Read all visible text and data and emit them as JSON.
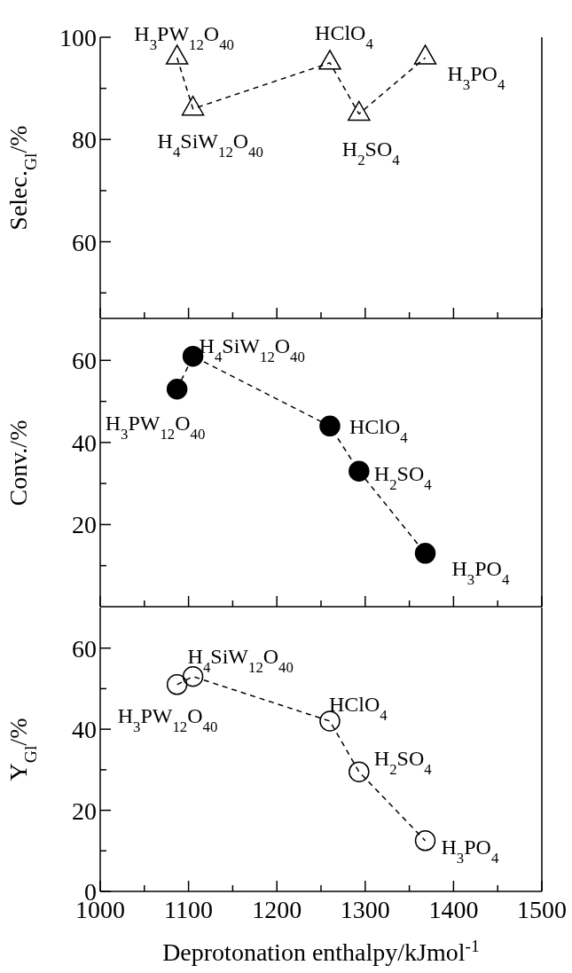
{
  "chart_data": [
    {
      "type": "line",
      "ylabel": "Selec.$_{Gl}$/%",
      "marker": "triangle",
      "line_style": "dashed",
      "color": "#000000",
      "tick_labels": "y",
      "x": [
        1087,
        1105,
        1260,
        1293,
        1368
      ],
      "values": [
        96,
        86,
        95,
        85,
        96
      ],
      "xlim": [
        1000,
        1500
      ],
      "xticks": [
        1000,
        {
          "value": 1050,
          "label": null
        },
        1100,
        {
          "value": 1150,
          "label": null
        },
        1200,
        {
          "value": 1250,
          "label": null
        },
        1300,
        {
          "value": 1350,
          "label": null
        },
        1400,
        {
          "value": 1450,
          "label": null
        },
        1500
      ],
      "ylim": [
        45,
        100
      ],
      "yticks": [
        {
          "value": 50,
          "label": null
        },
        60,
        {
          "value": 70,
          "label": null
        },
        80,
        {
          "value": 90,
          "label": null
        },
        100
      ],
      "annotations": [
        {
          "text": "H$_{3}$PW$_{12}$O$_{40}$",
          "x": 1087,
          "y": 96
        },
        {
          "text": "H$_{4}$SiW$_{12}$O$_{40}$",
          "x": 1105,
          "y": 86
        },
        {
          "text": "HClO$_{4}$",
          "x": 1260,
          "y": 95
        },
        {
          "text": "H$_{2}$SO$_{4}$",
          "x": 1293,
          "y": 85
        },
        {
          "text": "H$_{3}$PO$_{4}$",
          "x": 1368,
          "y": 96
        }
      ]
    },
    {
      "type": "line",
      "ylabel": "Conv./%",
      "marker": "circle",
      "line_style": "dashed",
      "color": "#000000",
      "tick_labels": "y",
      "x": [
        1087,
        1105,
        1260,
        1293,
        1368
      ],
      "values": [
        53,
        61,
        44,
        33,
        13
      ],
      "xlim": [
        1000,
        1500
      ],
      "xticks": [
        1000,
        {
          "value": 1050,
          "label": null
        },
        1100,
        {
          "value": 1150,
          "label": null
        },
        1200,
        {
          "value": 1250,
          "label": null
        },
        1300,
        {
          "value": 1350,
          "label": null
        },
        1400,
        {
          "value": 1450,
          "label": null
        },
        1500
      ],
      "ylim": [
        0,
        70
      ],
      "yticks": [
        {
          "value": 10,
          "label": null
        },
        20,
        {
          "value": 30,
          "label": null
        },
        40,
        {
          "value": 50,
          "label": null
        },
        60
      ],
      "annotations": [
        {
          "text": "H$_{3}$PW$_{12}$O$_{40}$",
          "x": 1087,
          "y": 53
        },
        {
          "text": "H$_{4}$SiW$_{12}$O$_{40}$",
          "x": 1105,
          "y": 61
        },
        {
          "text": "HClO$_{4}$",
          "x": 1260,
          "y": 44
        },
        {
          "text": "H$_{2}$SO$_{4}$",
          "x": 1293,
          "y": 33
        },
        {
          "text": "H$_{3}$PO$_{4}$",
          "x": 1368,
          "y": 13
        }
      ]
    },
    {
      "type": "line",
      "ylabel": "Y$_{Gl}$/%",
      "xlabel": "Deprotonation enthalpy/kJmol$^{-1}$",
      "marker": "circle",
      "line_style": "dashed",
      "color": "#000000",
      "x": [
        1087,
        1105,
        1260,
        1293,
        1368
      ],
      "values": [
        51,
        53,
        42,
        29.5,
        12.5
      ],
      "xlim": [
        1000,
        1500
      ],
      "xticks": [
        1000,
        {
          "value": 1050,
          "label": null
        },
        1100,
        {
          "value": 1150,
          "label": null
        },
        1200,
        {
          "value": 1250,
          "label": null
        },
        1300,
        {
          "value": 1350,
          "label": null
        },
        1400,
        {
          "value": 1450,
          "label": null
        },
        1500
      ],
      "ylim": [
        0,
        70
      ],
      "yticks": [
        0,
        {
          "value": 10,
          "label": null
        },
        20,
        {
          "value": 30,
          "label": null
        },
        40,
        {
          "value": 50,
          "label": null
        },
        60
      ],
      "annotations": [
        {
          "text": "H$_{3}$PW$_{12}$O$_{40}$",
          "x": 1087,
          "y": 51
        },
        {
          "text": "H$_{4}$SiW$_{12}$O$_{40}$",
          "x": 1105,
          "y": 53
        },
        {
          "text": "HClO$_{4}$",
          "x": 1260,
          "y": 42
        },
        {
          "text": "H$_{2}$SO$_{4}$",
          "x": 1293,
          "y": 29.5
        },
        {
          "text": "H$_{3}$PO$_{4}$",
          "x": 1368,
          "y": 12.5
        }
      ]
    }
  ]
}
